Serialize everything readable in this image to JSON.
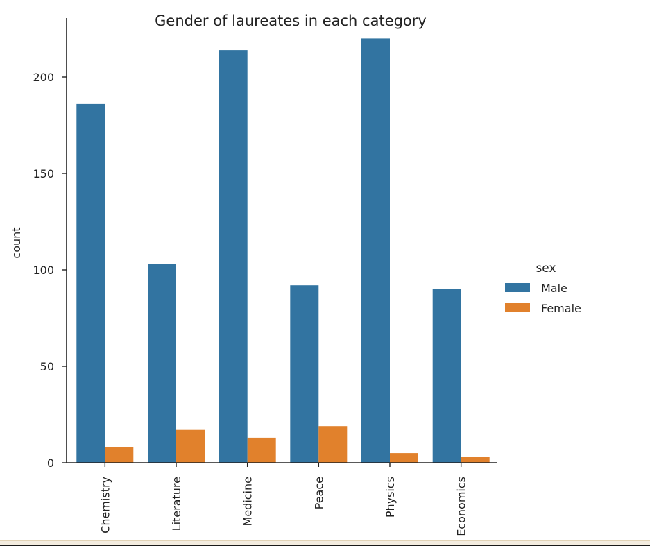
{
  "chart_data": {
    "type": "bar",
    "title": "Gender of laureates in each category",
    "xlabel": "",
    "ylabel": "count",
    "categories": [
      "Chemistry",
      "Literature",
      "Medicine",
      "Peace",
      "Physics",
      "Economics"
    ],
    "series": [
      {
        "name": "Male",
        "values": [
          186,
          103,
          214,
          92,
          220,
          90
        ],
        "color": "#3274a1"
      },
      {
        "name": "Female",
        "values": [
          8,
          17,
          13,
          19,
          5,
          3
        ],
        "color": "#e1812c"
      }
    ],
    "ylim": [
      0,
      230
    ],
    "yticks": [
      0,
      50,
      100,
      150,
      200
    ],
    "grid": false,
    "legend": {
      "title": "sex",
      "position": "right"
    }
  },
  "colors": {
    "axis": "#222222",
    "background": "#ffffff"
  }
}
